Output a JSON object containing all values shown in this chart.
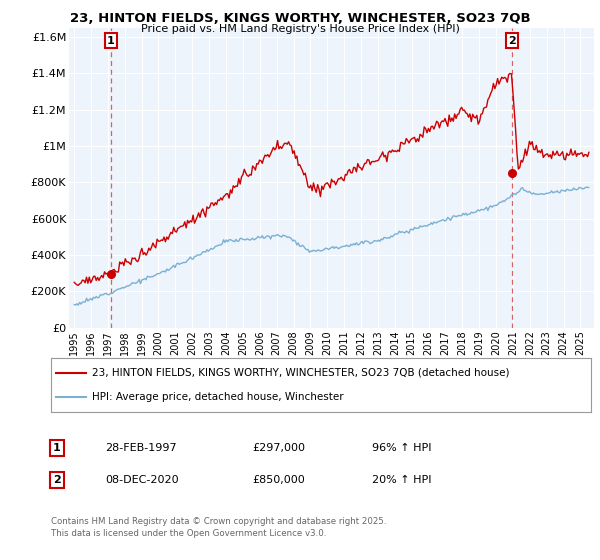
{
  "title1": "23, HINTON FIELDS, KINGS WORTHY, WINCHESTER, SO23 7QB",
  "title2": "Price paid vs. HM Land Registry's House Price Index (HPI)",
  "bg_color": "#eef4fb",
  "legend_label_red": "23, HINTON FIELDS, KINGS WORTHY, WINCHESTER, SO23 7QB (detached house)",
  "legend_label_blue": "HPI: Average price, detached house, Winchester",
  "annotation1_date": "28-FEB-1997",
  "annotation1_price": "£297,000",
  "annotation1_hpi": "96% ↑ HPI",
  "annotation2_date": "08-DEC-2020",
  "annotation2_price": "£850,000",
  "annotation2_hpi": "20% ↑ HPI",
  "footer": "Contains HM Land Registry data © Crown copyright and database right 2025.\nThis data is licensed under the Open Government Licence v3.0.",
  "ylim": [
    0,
    1650000
  ],
  "yticks": [
    0,
    200000,
    400000,
    600000,
    800000,
    1000000,
    1200000,
    1400000,
    1600000
  ],
  "ytick_labels": [
    "£0",
    "£200K",
    "£400K",
    "£600K",
    "£800K",
    "£1M",
    "£1.2M",
    "£1.4M",
    "£1.6M"
  ],
  "red_color": "#cc0000",
  "blue_color": "#7ab0d4",
  "marker1_x": 1997.17,
  "marker1_y": 297000,
  "marker2_x": 2020.93,
  "marker2_y": 850000,
  "xmin": 1994.7,
  "xmax": 2025.8
}
